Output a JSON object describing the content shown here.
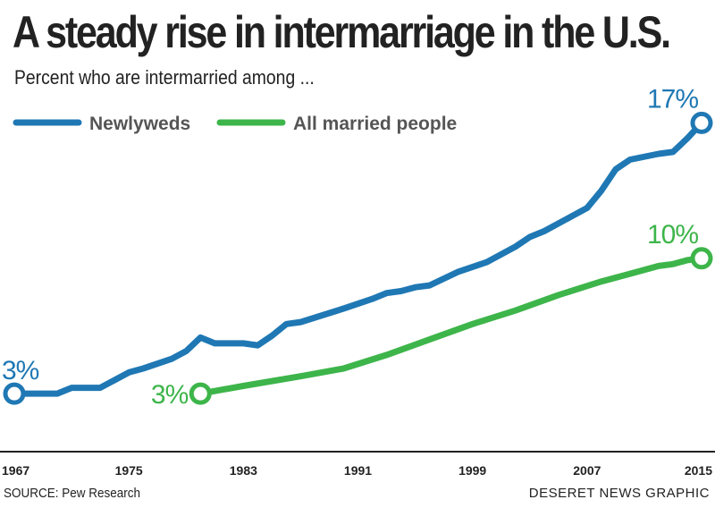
{
  "header": {
    "title": "A steady rise in intermarriage in the U.S.",
    "subtitle": "Percent who are intermarried among ..."
  },
  "footer": {
    "source": "SOURCE: Pew Research",
    "credit": "DESERET NEWS GRAPHIC"
  },
  "colors": {
    "newlyweds": "#1f78b4",
    "all_married": "#3db54a",
    "axis": "#222222"
  },
  "chart_data": {
    "type": "line",
    "title": "A steady rise in intermarriage in the U.S.",
    "subtitle": "Percent who are intermarried among ...",
    "xlabel": "",
    "ylabel": "",
    "xlim": [
      1967,
      2015
    ],
    "ylim": [
      0,
      18.5
    ],
    "x_ticks": [
      "1967",
      "1975",
      "1983",
      "1991",
      "1999",
      "2007",
      "2015"
    ],
    "grid": false,
    "legend_placement": "top-left",
    "series": [
      {
        "name": "Newlyweds",
        "color": "#1f78b4",
        "x": [
          1967,
          1970,
          1971,
          1973,
          1975,
          1976,
          1978,
          1979,
          1980,
          1981,
          1983,
          1984,
          1985,
          1986,
          1987,
          1990,
          1992,
          1993,
          1994,
          1995,
          1996,
          1998,
          2000,
          2002,
          2003,
          2004,
          2006,
          2007,
          2008,
          2009,
          2010,
          2012,
          2013,
          2014,
          2015
        ],
        "y": [
          3.0,
          3.0,
          3.3,
          3.3,
          4.1,
          4.3,
          4.8,
          5.2,
          5.9,
          5.6,
          5.6,
          5.5,
          6.0,
          6.6,
          6.7,
          7.4,
          7.9,
          8.2,
          8.3,
          8.5,
          8.6,
          9.3,
          9.8,
          10.6,
          11.1,
          11.4,
          12.2,
          12.6,
          13.5,
          14.6,
          15.1,
          15.4,
          15.5,
          16.2,
          17.0
        ],
        "end_labels": {
          "start": "3%",
          "end": "17%"
        }
      },
      {
        "name": "All married people",
        "color": "#3db54a",
        "x": [
          1980,
          1983,
          1987,
          1990,
          1993,
          1996,
          1999,
          2002,
          2005,
          2008,
          2010,
          2011,
          2012,
          2013,
          2014,
          2015
        ],
        "y": [
          3.0,
          3.4,
          3.9,
          4.3,
          5.0,
          5.8,
          6.6,
          7.3,
          8.1,
          8.8,
          9.2,
          9.4,
          9.6,
          9.7,
          9.9,
          10.0
        ],
        "end_labels": {
          "start": "3%",
          "end": "10%"
        }
      }
    ]
  }
}
